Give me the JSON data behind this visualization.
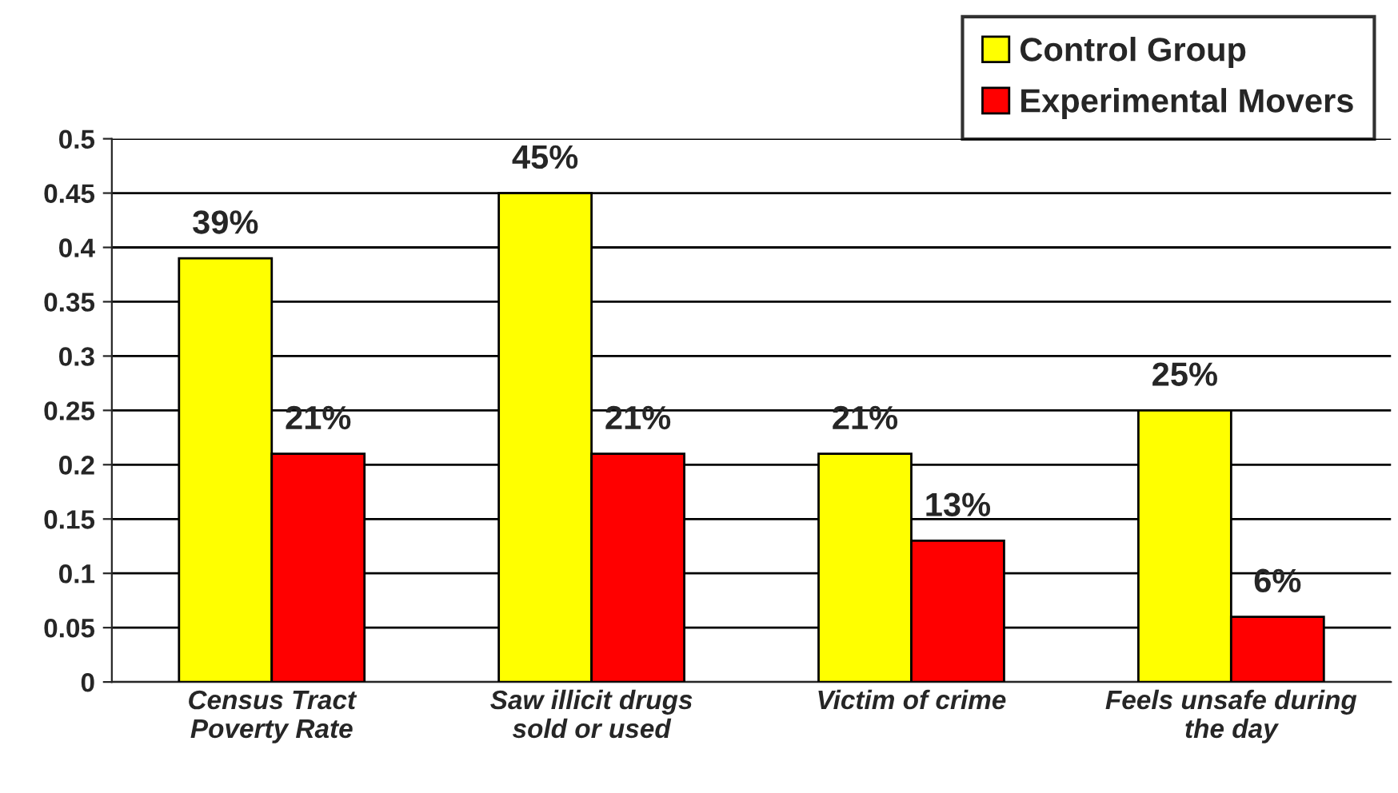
{
  "chart_data": {
    "type": "bar",
    "categories": [
      "Census Tract\nPoverty Rate",
      "Saw illicit drugs\nsold or used",
      "Victim of crime",
      "Feels unsafe during\nthe day"
    ],
    "series": [
      {
        "name": "Control Group",
        "color": "#ffff00",
        "values": [
          0.39,
          0.45,
          0.21,
          0.25
        ],
        "value_labels": [
          "39%",
          "45%",
          "21%",
          "25%"
        ]
      },
      {
        "name": "Experimental Movers",
        "color": "#ff0000",
        "values": [
          0.21,
          0.21,
          0.13,
          0.06
        ],
        "value_labels": [
          "21%",
          "21%",
          "13%",
          "6%"
        ]
      }
    ],
    "ylim": [
      0,
      0.5
    ],
    "yticks": [
      0,
      0.05,
      0.1,
      0.15,
      0.2,
      0.25,
      0.3,
      0.35,
      0.4,
      0.45,
      0.5
    ],
    "grid": "y",
    "legend": "top right"
  }
}
